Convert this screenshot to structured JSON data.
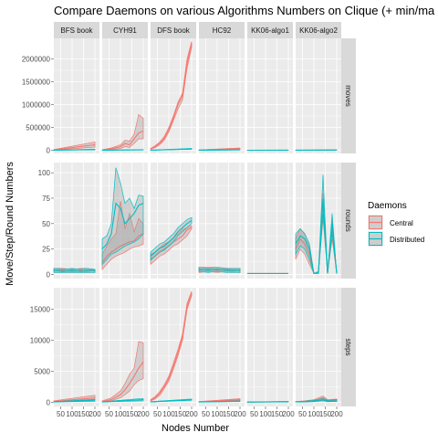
{
  "chart_data": {
    "type": "line",
    "title": "Compare Daemons on various Algorithms Numbers on Clique (+ min/ma",
    "xlabel": "Nodes Number",
    "ylabel": "Move/Step/Round Numbers",
    "facet_columns": [
      "BFS book",
      "CYH91",
      "DFS book",
      "HC92",
      "KK06-algo1",
      "KK06-algo2"
    ],
    "facet_rows": [
      "moves",
      "rounds",
      "steps"
    ],
    "x_ticks": [
      50,
      100,
      150,
      200
    ],
    "x_tick_labels": [
      "50",
      "100",
      "150",
      "200"
    ],
    "xlim": [
      20,
      220
    ],
    "rows": [
      {
        "name": "moves",
        "ylim": [
          -70000,
          2450000
        ],
        "y_ticks": [
          0,
          500000,
          1000000,
          1500000,
          2000000
        ],
        "y_tick_labels": [
          "0",
          "500000",
          "1000000",
          "1500000",
          "2000000"
        ]
      },
      {
        "name": "rounds",
        "ylim": [
          -4,
          110
        ],
        "y_ticks": [
          0,
          25,
          50,
          75,
          100
        ],
        "y_tick_labels": [
          "0",
          "25",
          "50",
          "75",
          "100"
        ]
      },
      {
        "name": "steps",
        "ylim": [
          -700,
          18500
        ],
        "y_ticks": [
          0,
          5000,
          10000,
          15000
        ],
        "y_tick_labels": [
          "0",
          "5000",
          "10000",
          "15000"
        ]
      }
    ],
    "legend": {
      "title": "Daemons",
      "position": "right",
      "items": [
        {
          "name": "Central",
          "color": "#F8766D"
        },
        {
          "name": "Distributed",
          "color": "#00BFC4"
        }
      ]
    },
    "background": {
      "panel": "#EBEBEB",
      "strip": "#D9D9D9",
      "grid": "#FFFFFF"
    },
    "series": [
      {
        "row": "moves",
        "col": "BFS book",
        "daemon": "Central",
        "x": [
          20,
          200
        ],
        "mean": [
          10000,
          120000
        ],
        "min": [
          5000,
          70000
        ],
        "max": [
          15000,
          180000
        ]
      },
      {
        "row": "moves",
        "col": "BFS book",
        "daemon": "Distributed",
        "x": [
          20,
          200
        ],
        "mean": [
          2000,
          15000
        ],
        "min": [
          1000,
          8000
        ],
        "max": [
          3000,
          25000
        ]
      },
      {
        "row": "moves",
        "col": "CYH91",
        "daemon": "Central",
        "x": [
          20,
          60,
          100,
          120,
          140,
          160,
          180,
          200
        ],
        "mean": [
          5000,
          30000,
          80000,
          150000,
          120000,
          250000,
          380000,
          420000
        ],
        "min": [
          2000,
          15000,
          40000,
          80000,
          60000,
          150000,
          250000,
          250000
        ],
        "max": [
          10000,
          50000,
          120000,
          220000,
          200000,
          350000,
          780000,
          700000
        ]
      },
      {
        "row": "moves",
        "col": "CYH91",
        "daemon": "Distributed",
        "x": [
          20,
          200
        ],
        "mean": [
          1000,
          10000
        ],
        "min": [
          500,
          5000
        ],
        "max": [
          2000,
          15000
        ]
      },
      {
        "row": "moves",
        "col": "DFS book",
        "daemon": "Central",
        "x": [
          20,
          40,
          60,
          80,
          100,
          120,
          140,
          160,
          180,
          200
        ],
        "mean": [
          30000,
          80000,
          150000,
          260000,
          450000,
          700000,
          1000000,
          1200000,
          1900000,
          2320000
        ],
        "min": [
          20000,
          60000,
          120000,
          220000,
          400000,
          650000,
          900000,
          1100000,
          1800000,
          2250000
        ],
        "max": [
          40000,
          100000,
          180000,
          300000,
          500000,
          750000,
          1050000,
          1250000,
          2000000,
          2380000
        ]
      },
      {
        "row": "moves",
        "col": "DFS book",
        "daemon": "Distributed",
        "x": [
          20,
          200
        ],
        "mean": [
          1000,
          30000
        ],
        "min": [
          500,
          20000
        ],
        "max": [
          2000,
          40000
        ]
      },
      {
        "row": "moves",
        "col": "HC92",
        "daemon": "Central",
        "x": [
          20,
          200
        ],
        "mean": [
          3000,
          40000
        ],
        "min": [
          2000,
          30000
        ],
        "max": [
          5000,
          50000
        ]
      },
      {
        "row": "moves",
        "col": "HC92",
        "daemon": "Distributed",
        "x": [
          20,
          200
        ],
        "mean": [
          1000,
          10000
        ],
        "min": [
          500,
          5000
        ],
        "max": [
          2000,
          15000
        ]
      },
      {
        "row": "moves",
        "col": "KK06-algo1",
        "daemon": "Central",
        "x": [
          20,
          200
        ],
        "mean": [
          200,
          2000
        ],
        "min": [
          100,
          1000
        ],
        "max": [
          300,
          3000
        ]
      },
      {
        "row": "moves",
        "col": "KK06-algo1",
        "daemon": "Distributed",
        "x": [
          20,
          200
        ],
        "mean": [
          200,
          2000
        ],
        "min": [
          100,
          1000
        ],
        "max": [
          300,
          3000
        ]
      },
      {
        "row": "moves",
        "col": "KK06-algo2",
        "daemon": "Central",
        "x": [
          20,
          200
        ],
        "mean": [
          500,
          5000
        ],
        "min": [
          200,
          2000
        ],
        "max": [
          1000,
          8000
        ]
      },
      {
        "row": "moves",
        "col": "KK06-algo2",
        "daemon": "Distributed",
        "x": [
          20,
          200
        ],
        "mean": [
          500,
          5000
        ],
        "min": [
          200,
          2000
        ],
        "max": [
          1000,
          8000
        ]
      },
      {
        "row": "rounds",
        "col": "BFS book",
        "daemon": "Central",
        "x": [
          20,
          60,
          100,
          140,
          160,
          200
        ],
        "mean": [
          4,
          4,
          3,
          4,
          3,
          4
        ],
        "min": [
          2,
          2,
          2,
          2,
          2,
          2
        ],
        "max": [
          6,
          6,
          5,
          6,
          6,
          5
        ]
      },
      {
        "row": "rounds",
        "col": "BFS book",
        "daemon": "Distributed",
        "x": [
          20,
          60,
          100,
          140,
          160,
          200
        ],
        "mean": [
          4,
          3,
          4,
          3,
          4,
          4
        ],
        "min": [
          2,
          2,
          2,
          2,
          2,
          2
        ],
        "max": [
          6,
          5,
          6,
          5,
          6,
          5
        ]
      },
      {
        "row": "rounds",
        "col": "CYH91",
        "daemon": "Central",
        "x": [
          20,
          40,
          60,
          80,
          100,
          120,
          140,
          160,
          180,
          200
        ],
        "mean": [
          12,
          18,
          22,
          25,
          28,
          30,
          32,
          33,
          38,
          40
        ],
        "min": [
          5,
          10,
          15,
          18,
          20,
          22,
          25,
          27,
          28,
          30
        ],
        "max": [
          20,
          28,
          35,
          40,
          72,
          45,
          60,
          42,
          55,
          50
        ]
      },
      {
        "row": "rounds",
        "col": "CYH91",
        "daemon": "Distributed",
        "x": [
          20,
          40,
          60,
          80,
          100,
          120,
          140,
          160,
          180,
          200
        ],
        "mean": [
          25,
          30,
          40,
          70,
          65,
          50,
          55,
          60,
          68,
          70
        ],
        "min": [
          10,
          15,
          20,
          22,
          25,
          28,
          30,
          32,
          35,
          40
        ],
        "max": [
          35,
          38,
          50,
          105,
          90,
          70,
          75,
          65,
          78,
          77
        ]
      },
      {
        "row": "rounds",
        "col": "DFS book",
        "daemon": "Central",
        "x": [
          20,
          40,
          60,
          80,
          100,
          120,
          140,
          160,
          180,
          200
        ],
        "mean": [
          15,
          18,
          22,
          25,
          28,
          32,
          35,
          38,
          44,
          46
        ],
        "min": [
          10,
          14,
          18,
          20,
          24,
          28,
          30,
          34,
          38,
          45
        ],
        "max": [
          20,
          22,
          26,
          30,
          32,
          36,
          40,
          44,
          46,
          48
        ]
      },
      {
        "row": "rounds",
        "col": "DFS book",
        "daemon": "Distributed",
        "x": [
          20,
          40,
          60,
          80,
          100,
          120,
          140,
          160,
          180,
          200
        ],
        "mean": [
          18,
          22,
          26,
          28,
          32,
          36,
          42,
          46,
          50,
          53
        ],
        "min": [
          14,
          18,
          22,
          24,
          28,
          32,
          38,
          42,
          46,
          50
        ],
        "max": [
          22,
          26,
          30,
          32,
          36,
          40,
          46,
          50,
          54,
          56
        ]
      },
      {
        "row": "rounds",
        "col": "HC92",
        "daemon": "Central",
        "x": [
          20,
          60,
          100,
          140,
          200
        ],
        "mean": [
          4,
          5,
          4,
          5,
          4
        ],
        "min": [
          2,
          3,
          2,
          3,
          2
        ],
        "max": [
          7,
          7,
          7,
          6,
          6
        ]
      },
      {
        "row": "rounds",
        "col": "HC92",
        "daemon": "Distributed",
        "x": [
          20,
          60,
          100,
          140,
          200
        ],
        "mean": [
          5,
          4,
          5,
          4,
          4
        ],
        "min": [
          3,
          2,
          3,
          2,
          2
        ],
        "max": [
          7,
          6,
          7,
          6,
          6
        ]
      },
      {
        "row": "rounds",
        "col": "KK06-algo1",
        "daemon": "Central",
        "x": [
          20,
          200
        ],
        "mean": [
          1,
          1
        ],
        "min": [
          1,
          1
        ],
        "max": [
          1,
          1
        ]
      },
      {
        "row": "rounds",
        "col": "KK06-algo1",
        "daemon": "Distributed",
        "x": [
          20,
          200
        ],
        "mean": [
          1,
          1
        ],
        "min": [
          1,
          1
        ],
        "max": [
          1,
          1
        ]
      },
      {
        "row": "rounds",
        "col": "KK06-algo2",
        "daemon": "Central",
        "x": [
          20,
          40,
          60,
          80,
          100,
          120,
          140,
          160,
          180,
          200
        ],
        "mean": [
          25,
          35,
          30,
          20,
          1,
          2,
          70,
          1,
          45,
          1
        ],
        "min": [
          15,
          25,
          20,
          10,
          1,
          1,
          55,
          1,
          35,
          1
        ],
        "max": [
          35,
          45,
          40,
          30,
          1,
          3,
          80,
          1,
          55,
          1
        ]
      },
      {
        "row": "rounds",
        "col": "KK06-algo2",
        "daemon": "Distributed",
        "x": [
          20,
          40,
          60,
          80,
          100,
          120,
          140,
          160,
          180,
          200
        ],
        "mean": [
          30,
          38,
          35,
          25,
          1,
          2,
          75,
          1,
          50,
          1
        ],
        "min": [
          20,
          28,
          25,
          15,
          1,
          1,
          60,
          1,
          40,
          1
        ],
        "max": [
          40,
          45,
          40,
          30,
          1,
          3,
          98,
          1,
          60,
          1
        ]
      },
      {
        "row": "steps",
        "col": "BFS book",
        "daemon": "Central",
        "x": [
          20,
          200
        ],
        "mean": [
          100,
          700
        ],
        "min": [
          50,
          400
        ],
        "max": [
          200,
          1100
        ]
      },
      {
        "row": "steps",
        "col": "BFS book",
        "daemon": "Distributed",
        "x": [
          20,
          200
        ],
        "mean": [
          50,
          300
        ],
        "min": [
          20,
          150
        ],
        "max": [
          80,
          450
        ]
      },
      {
        "row": "steps",
        "col": "CYH91",
        "daemon": "Central",
        "x": [
          20,
          60,
          100,
          120,
          140,
          160,
          180,
          200
        ],
        "mean": [
          100,
          400,
          1200,
          2000,
          3000,
          4200,
          5500,
          6500
        ],
        "min": [
          50,
          200,
          700,
          1200,
          1800,
          2800,
          3500,
          3800
        ],
        "max": [
          200,
          700,
          1800,
          3000,
          4500,
          5500,
          9800,
          9600
        ]
      },
      {
        "row": "steps",
        "col": "CYH91",
        "daemon": "Distributed",
        "x": [
          20,
          100,
          200
        ],
        "mean": [
          30,
          200,
          400
        ],
        "min": [
          10,
          100,
          200
        ],
        "max": [
          50,
          300,
          600
        ]
      },
      {
        "row": "steps",
        "col": "DFS book",
        "daemon": "Central",
        "x": [
          20,
          40,
          60,
          80,
          100,
          120,
          140,
          160,
          180,
          200
        ],
        "mean": [
          300,
          700,
          1400,
          2500,
          3800,
          5800,
          8000,
          10500,
          15500,
          17500
        ],
        "min": [
          200,
          500,
          1100,
          2200,
          3400,
          5300,
          7500,
          10000,
          15000,
          17200
        ],
        "max": [
          400,
          900,
          1700,
          2800,
          4200,
          6300,
          8500,
          11000,
          16000,
          17900
        ]
      },
      {
        "row": "steps",
        "col": "DFS book",
        "daemon": "Distributed",
        "x": [
          20,
          200
        ],
        "mean": [
          50,
          400
        ],
        "min": [
          20,
          300
        ],
        "max": [
          80,
          500
        ]
      },
      {
        "row": "steps",
        "col": "HC92",
        "daemon": "Central",
        "x": [
          20,
          200
        ],
        "mean": [
          50,
          400
        ],
        "min": [
          20,
          300
        ],
        "max": [
          100,
          550
        ]
      },
      {
        "row": "steps",
        "col": "HC92",
        "daemon": "Distributed",
        "x": [
          20,
          200
        ],
        "mean": [
          20,
          150
        ],
        "min": [
          10,
          100
        ],
        "max": [
          40,
          200
        ]
      },
      {
        "row": "steps",
        "col": "KK06-algo1",
        "daemon": "Central",
        "x": [
          20,
          200
        ],
        "mean": [
          10,
          60
        ],
        "min": [
          5,
          30
        ],
        "max": [
          20,
          100
        ]
      },
      {
        "row": "steps",
        "col": "KK06-algo1",
        "daemon": "Distributed",
        "x": [
          20,
          200
        ],
        "mean": [
          10,
          60
        ],
        "min": [
          5,
          30
        ],
        "max": [
          20,
          100
        ]
      },
      {
        "row": "steps",
        "col": "KK06-algo2",
        "daemon": "Central",
        "x": [
          20,
          60,
          100,
          140,
          160,
          200
        ],
        "mean": [
          50,
          100,
          200,
          700,
          200,
          300
        ],
        "min": [
          20,
          50,
          100,
          300,
          100,
          100
        ],
        "max": [
          100,
          200,
          400,
          1000,
          400,
          500
        ]
      },
      {
        "row": "steps",
        "col": "KK06-algo2",
        "daemon": "Distributed",
        "x": [
          20,
          60,
          100,
          140,
          160,
          200
        ],
        "mean": [
          40,
          80,
          150,
          400,
          150,
          200
        ],
        "min": [
          20,
          40,
          80,
          200,
          80,
          100
        ],
        "max": [
          80,
          150,
          300,
          600,
          300,
          400
        ]
      }
    ]
  }
}
